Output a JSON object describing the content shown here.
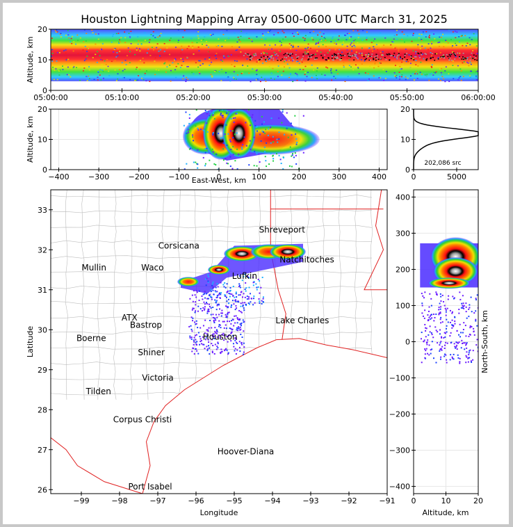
{
  "chart_data": {
    "title": "Houston Lightning Mapping Array 0500-0600 UTC March 31, 2025",
    "panels": {
      "time_height": {
        "type": "heatmap",
        "ylabel": "Altitude, km",
        "ylim": [
          0,
          20
        ],
        "y_ticks": [
          "0",
          "10",
          "20"
        ],
        "x_ticks": [
          "05:00:00",
          "05:10:00",
          "05:20:00",
          "05:30:00",
          "05:40:00",
          "05:50:00",
          "06:00:00"
        ],
        "core_altitude_km": [
          10,
          14
        ]
      },
      "ew_height": {
        "type": "heatmap",
        "xlabel": "East-West, km",
        "ylabel": "Altitude, km",
        "xlim": [
          -420,
          420
        ],
        "ylim": [
          0,
          20
        ],
        "x_ticks": [
          "−400",
          "−300",
          "−200",
          "−100",
          "0",
          "100",
          "200",
          "300",
          "400"
        ],
        "y_ticks": [
          "0",
          "10",
          "20"
        ],
        "core_ew_km": [
          -60,
          200
        ]
      },
      "histogram": {
        "type": "line",
        "xlim": [
          0,
          7500
        ],
        "ylim": [
          0,
          20
        ],
        "x_ticks": [
          "0",
          "5000"
        ],
        "y_ticks": [
          "0",
          "10",
          "20"
        ],
        "peak_altitude_km": 12,
        "annotation": "202,086 src"
      },
      "map": {
        "type": "scatter",
        "xlabel": "Longitude",
        "ylabel": "Latitude",
        "xlim": [
          -99.8,
          -91
        ],
        "ylim": [
          25.9,
          33.5
        ],
        "x_ticks": [
          "−99",
          "−98",
          "−97",
          "−96",
          "−95",
          "−94",
          "−93",
          "−92",
          "−91"
        ],
        "y_ticks": [
          "26",
          "27",
          "28",
          "29",
          "30",
          "31",
          "32",
          "33"
        ],
        "cities": [
          {
            "name": "Shreveport",
            "lon": -93.75,
            "lat": 32.5,
            "color": "#000000"
          },
          {
            "name": "Corsicana",
            "lon": -96.45,
            "lat": 32.1,
            "color": "#000000"
          },
          {
            "name": "Natchitoches",
            "lon": -93.1,
            "lat": 31.75,
            "color": "#000000"
          },
          {
            "name": "Mullin",
            "lon": -98.67,
            "lat": 31.55,
            "color": "#f08a3c"
          },
          {
            "name": "Waco",
            "lon": -97.14,
            "lat": 31.55,
            "color": "#000000"
          },
          {
            "name": "Lufkin",
            "lon": -94.73,
            "lat": 31.34,
            "color": "#000000"
          },
          {
            "name": "ATX",
            "lon": -97.74,
            "lat": 30.3,
            "color": "#f08a3c"
          },
          {
            "name": "Bastrop",
            "lon": -97.31,
            "lat": 30.12,
            "color": "#000000"
          },
          {
            "name": "Lake Charles",
            "lon": -93.22,
            "lat": 30.23,
            "color": "#000000"
          },
          {
            "name": "Houston",
            "lon": -95.37,
            "lat": 29.82,
            "color": "#e8a020"
          },
          {
            "name": "Boerne",
            "lon": -98.74,
            "lat": 29.79,
            "color": "#000000"
          },
          {
            "name": "Shiner",
            "lon": -97.17,
            "lat": 29.43,
            "color": "#000000"
          },
          {
            "name": "Victoria",
            "lon": -97.0,
            "lat": 28.8,
            "color": "#000000"
          },
          {
            "name": "Tilden",
            "lon": -98.55,
            "lat": 28.46,
            "color": "#000000"
          },
          {
            "name": "Corpus Christi",
            "lon": -97.4,
            "lat": 27.75,
            "color": "#000000"
          },
          {
            "name": "Hoover-Diana",
            "lon": -94.7,
            "lat": 26.95,
            "color": "#1a1aff"
          },
          {
            "name": "Port Isabel",
            "lon": -97.2,
            "lat": 26.07,
            "color": "#000000"
          }
        ],
        "storm_cells_lonlat": [
          [
            -96.2,
            31.2
          ],
          [
            -95.4,
            31.5
          ],
          [
            -94.8,
            31.9
          ],
          [
            -94.1,
            31.95
          ],
          [
            -93.6,
            31.95
          ]
        ]
      },
      "ns_height": {
        "type": "heatmap",
        "xlabel": "Altitude, km",
        "ylabel": "North-South, km",
        "xlim": [
          0,
          20
        ],
        "ylim": [
          -420,
          420
        ],
        "x_ticks": [
          "0",
          "10",
          "20"
        ],
        "y_ticks": [
          "−400",
          "−300",
          "−200",
          "−100",
          "0",
          "100",
          "200",
          "300",
          "400"
        ],
        "core_ns_km": [
          150,
          270
        ]
      }
    }
  }
}
